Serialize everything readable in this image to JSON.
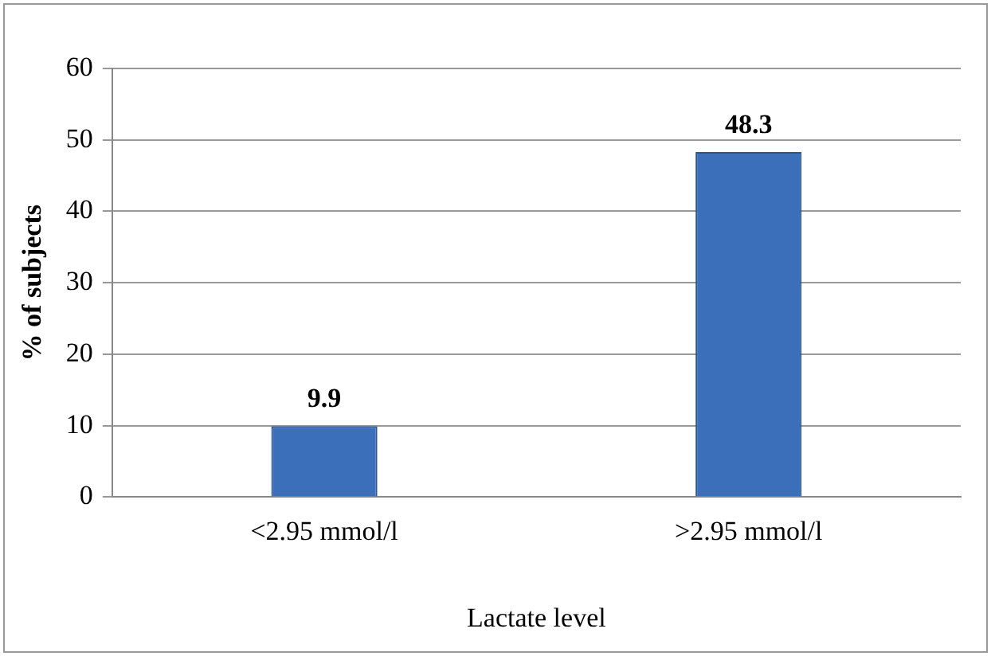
{
  "chart_data": {
    "type": "bar",
    "xlabel": "Lactate level",
    "ylabel": "% of subjects",
    "categories": [
      "<2.95 mmol/l",
      ">2.95 mmol/l"
    ],
    "values": [
      9.9,
      48.3
    ],
    "color": "#3c6fba",
    "ylim": [
      0,
      60
    ],
    "yticks": [
      0,
      10,
      20,
      30,
      40,
      50,
      60
    ],
    "grid": "y",
    "data_labels": true,
    "legend": false
  }
}
